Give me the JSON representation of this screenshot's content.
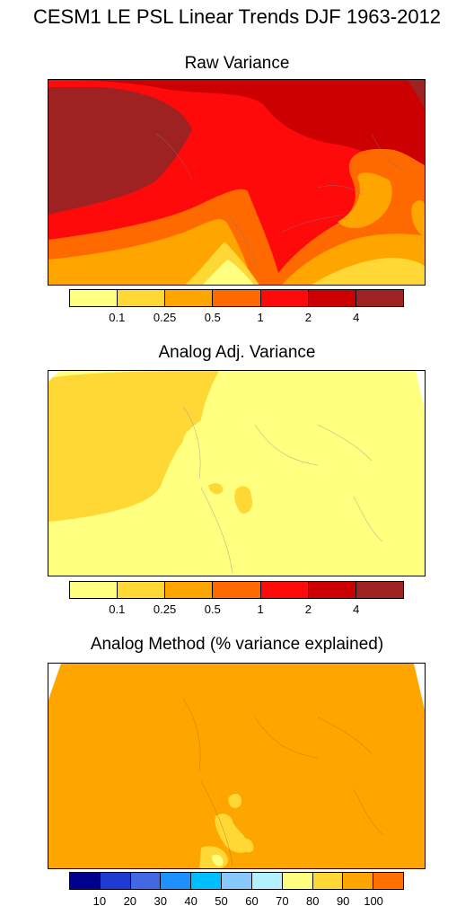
{
  "title": "CESM1 LE PSL Linear Trends DJF 1963-2012",
  "panels": [
    {
      "title": "Raw Variance",
      "colorbar": {
        "colors": [
          "#ffff80",
          "#ffd835",
          "#ffa500",
          "#ff6a00",
          "#ff0a0a",
          "#cc0000",
          "#9e2222"
        ],
        "labels": [
          "0.1",
          "0.25",
          "0.5",
          "1",
          "2",
          "4"
        ]
      }
    },
    {
      "title": "Analog Adj. Variance",
      "colorbar": {
        "colors": [
          "#ffff80",
          "#ffd835",
          "#ffa500",
          "#ff6a00",
          "#ff0a0a",
          "#cc0000",
          "#9e2222"
        ],
        "labels": [
          "0.1",
          "0.25",
          "0.5",
          "1",
          "2",
          "4"
        ]
      }
    },
    {
      "title": "Analog Method (% variance explained)",
      "colorbar": {
        "colors": [
          "#00008e",
          "#1e3cd2",
          "#4169e1",
          "#1e90ff",
          "#00bfff",
          "#87c8ff",
          "#b4f0ff",
          "#ffff80",
          "#ffd835",
          "#ffa500",
          "#ff7000"
        ],
        "labels": [
          "10",
          "20",
          "30",
          "40",
          "50",
          "60",
          "70",
          "80",
          "90",
          "100"
        ]
      }
    }
  ]
}
